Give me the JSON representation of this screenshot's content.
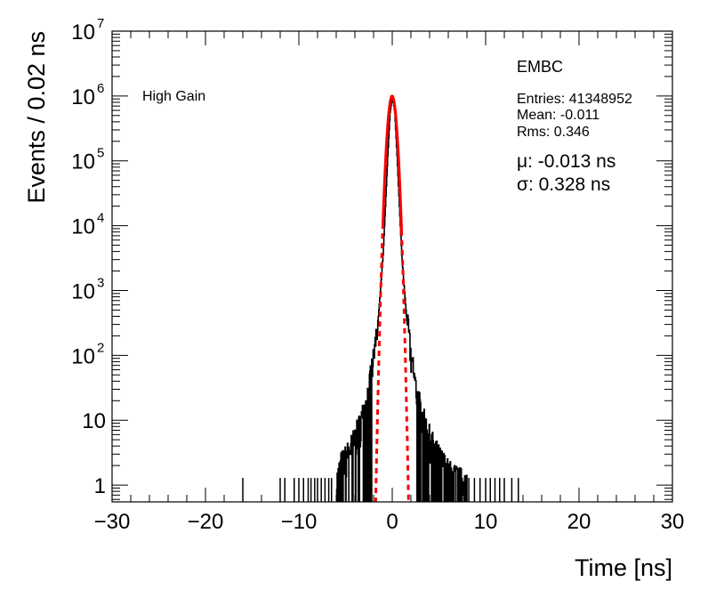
{
  "chart_data": {
    "type": "histogram",
    "xlabel": "Time [ns]",
    "ylabel": "Events / 0.02 ns",
    "xlim": [
      -30,
      30
    ],
    "ylim": [
      0.55,
      10000000
    ],
    "y_scale": "log",
    "x_ticks": [
      -30,
      -20,
      -10,
      0,
      10,
      20,
      30
    ],
    "x_tick_labels": [
      "−30",
      "−20",
      "−10",
      "0",
      "10",
      "20",
      "30"
    ],
    "y_ticks": [
      {
        "value": 1,
        "label": "1",
        "exp": ""
      },
      {
        "value": 10,
        "label": "10",
        "exp": ""
      },
      {
        "value": 100,
        "label": "10",
        "exp": "2"
      },
      {
        "value": 1000,
        "label": "10",
        "exp": "3"
      },
      {
        "value": 10000,
        "label": "10",
        "exp": "4"
      },
      {
        "value": 100000,
        "label": "10",
        "exp": "5"
      },
      {
        "value": 1000000,
        "label": "10",
        "exp": "6"
      },
      {
        "value": 10000000,
        "label": "10",
        "exp": "7"
      }
    ],
    "gain_label": "High Gain",
    "detector_label": "EMBC",
    "stats": {
      "entries": "Entries: 41348952",
      "mean": "Mean: -0.011",
      "rms": "Rms: 0.346"
    },
    "fit_text": {
      "mu": "μ: -0.013 ns",
      "sigma": "σ: 0.328 ns"
    },
    "fit": {
      "type": "gaussian",
      "mean": -0.013,
      "sigma": 0.328,
      "peak": 1000000,
      "color": "#ff0000",
      "fit_range": [
        -1.0,
        1.0
      ]
    },
    "histogram": {
      "color": "#000000",
      "core": [
        [
          -6,
          1
        ],
        [
          -5.5,
          2
        ],
        [
          -5,
          2.5
        ],
        [
          -4.5,
          3.5
        ],
        [
          -4,
          5
        ],
        [
          -3.5,
          8
        ],
        [
          -3,
          14
        ],
        [
          -2.5,
          30
        ],
        [
          -2,
          90
        ],
        [
          -1.5,
          400
        ],
        [
          -1,
          3500
        ],
        [
          -0.75,
          20000
        ],
        [
          -0.5,
          120000
        ],
        [
          -0.25,
          560000
        ],
        [
          0,
          1000000
        ],
        [
          0.25,
          560000
        ],
        [
          0.5,
          120000
        ],
        [
          0.75,
          20000
        ],
        [
          1,
          3500
        ],
        [
          1.5,
          400
        ],
        [
          2,
          90
        ],
        [
          2.5,
          30
        ],
        [
          3,
          14
        ],
        [
          3.5,
          8
        ],
        [
          4,
          5
        ],
        [
          4.5,
          3.5
        ],
        [
          5,
          2.5
        ],
        [
          5.5,
          2
        ],
        [
          6,
          1.5
        ],
        [
          7,
          1.2
        ],
        [
          8,
          1
        ]
      ],
      "isolated_entries": [
        -16,
        -12,
        -11.5,
        -10.5,
        -10,
        -9.5,
        -9,
        -8.7,
        -8.3,
        -8,
        -7.6,
        -7.2,
        -6.8,
        -6.5,
        7.5,
        8.2,
        8.8,
        9.4,
        10,
        10.5,
        11,
        11.5,
        12,
        12.8,
        13.5
      ]
    }
  }
}
